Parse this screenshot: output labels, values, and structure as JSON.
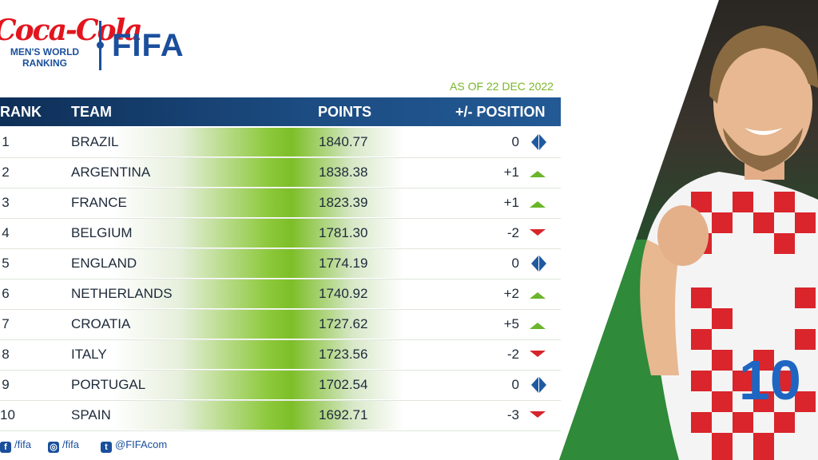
{
  "brand": {
    "sponsor_logo": "Coca-Cola",
    "subtitle_line1": "MEN'S WORLD",
    "subtitle_line2": "RANKING",
    "fifa_logo": "FIFA"
  },
  "as_of": "AS OF 22 DEC 2022",
  "table": {
    "headers": {
      "rank": "RANK",
      "team": "TEAM",
      "points": "POINTS",
      "change": "+/- POSITION"
    },
    "rows": [
      {
        "rank": "1",
        "team": "BRAZIL",
        "points": "1840.77",
        "change": "0",
        "trend": "same"
      },
      {
        "rank": "2",
        "team": "ARGENTINA",
        "points": "1838.38",
        "change": "+1",
        "trend": "up"
      },
      {
        "rank": "3",
        "team": "FRANCE",
        "points": "1823.39",
        "change": "+1",
        "trend": "up"
      },
      {
        "rank": "4",
        "team": "BELGIUM",
        "points": "1781.30",
        "change": "-2",
        "trend": "down"
      },
      {
        "rank": "5",
        "team": "ENGLAND",
        "points": "1774.19",
        "change": "0",
        "trend": "same"
      },
      {
        "rank": "6",
        "team": "NETHERLANDS",
        "points": "1740.92",
        "change": "+2",
        "trend": "up"
      },
      {
        "rank": "7",
        "team": "CROATIA",
        "points": "1727.62",
        "change": "+5",
        "trend": "up"
      },
      {
        "rank": "8",
        "team": "ITALY",
        "points": "1723.56",
        "change": "-2",
        "trend": "down"
      },
      {
        "rank": "9",
        "team": "PORTUGAL",
        "points": "1702.54",
        "change": "0",
        "trend": "same"
      },
      {
        "rank": "10",
        "team": "SPAIN",
        "points": "1692.71",
        "change": "-3",
        "trend": "down"
      }
    ]
  },
  "social": {
    "facebook": "/fifa",
    "instagram": "/fifa",
    "twitter": "@FIFAcom"
  },
  "colors": {
    "navy": "#1a4f9c",
    "green": "#7ab628",
    "up": "#6bb52a",
    "down": "#d6252b",
    "same": "#1f5aa0",
    "coca_red": "#e2151e"
  },
  "icons": {
    "up": "triangle-up-icon",
    "down": "triangle-down-icon",
    "same": "double-arrow-icon"
  }
}
